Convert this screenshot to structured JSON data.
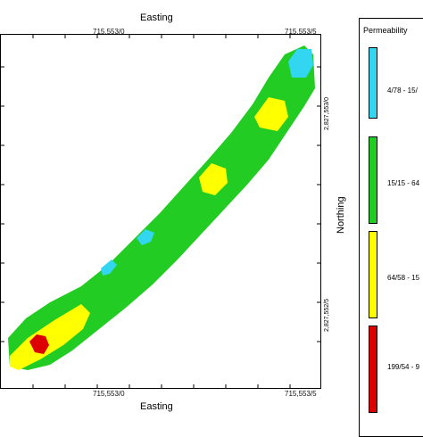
{
  "axes": {
    "top_title": "Easting",
    "bottom_title": "Easting",
    "right_title": "Northing",
    "x_ticks": [
      "715,553/0",
      "715,553/5"
    ],
    "y_ticks": [
      "2,827,553/0",
      "2,827,552/5"
    ]
  },
  "legend": {
    "title": "Permeability",
    "items": [
      {
        "label": "4/78 - 15/",
        "color": "#33d6f0"
      },
      {
        "label": "15/15 - 64",
        "color": "#22cc22"
      },
      {
        "label": "64/58 - 15",
        "color": "#ffff00"
      },
      {
        "label": "199/54 - 9",
        "color": "#dd0000"
      }
    ]
  },
  "map": {
    "zone_colors": {
      "cyan": "#33d6f0",
      "green": "#22cc22",
      "yellow": "#ffff00",
      "red": "#dd0000"
    }
  }
}
